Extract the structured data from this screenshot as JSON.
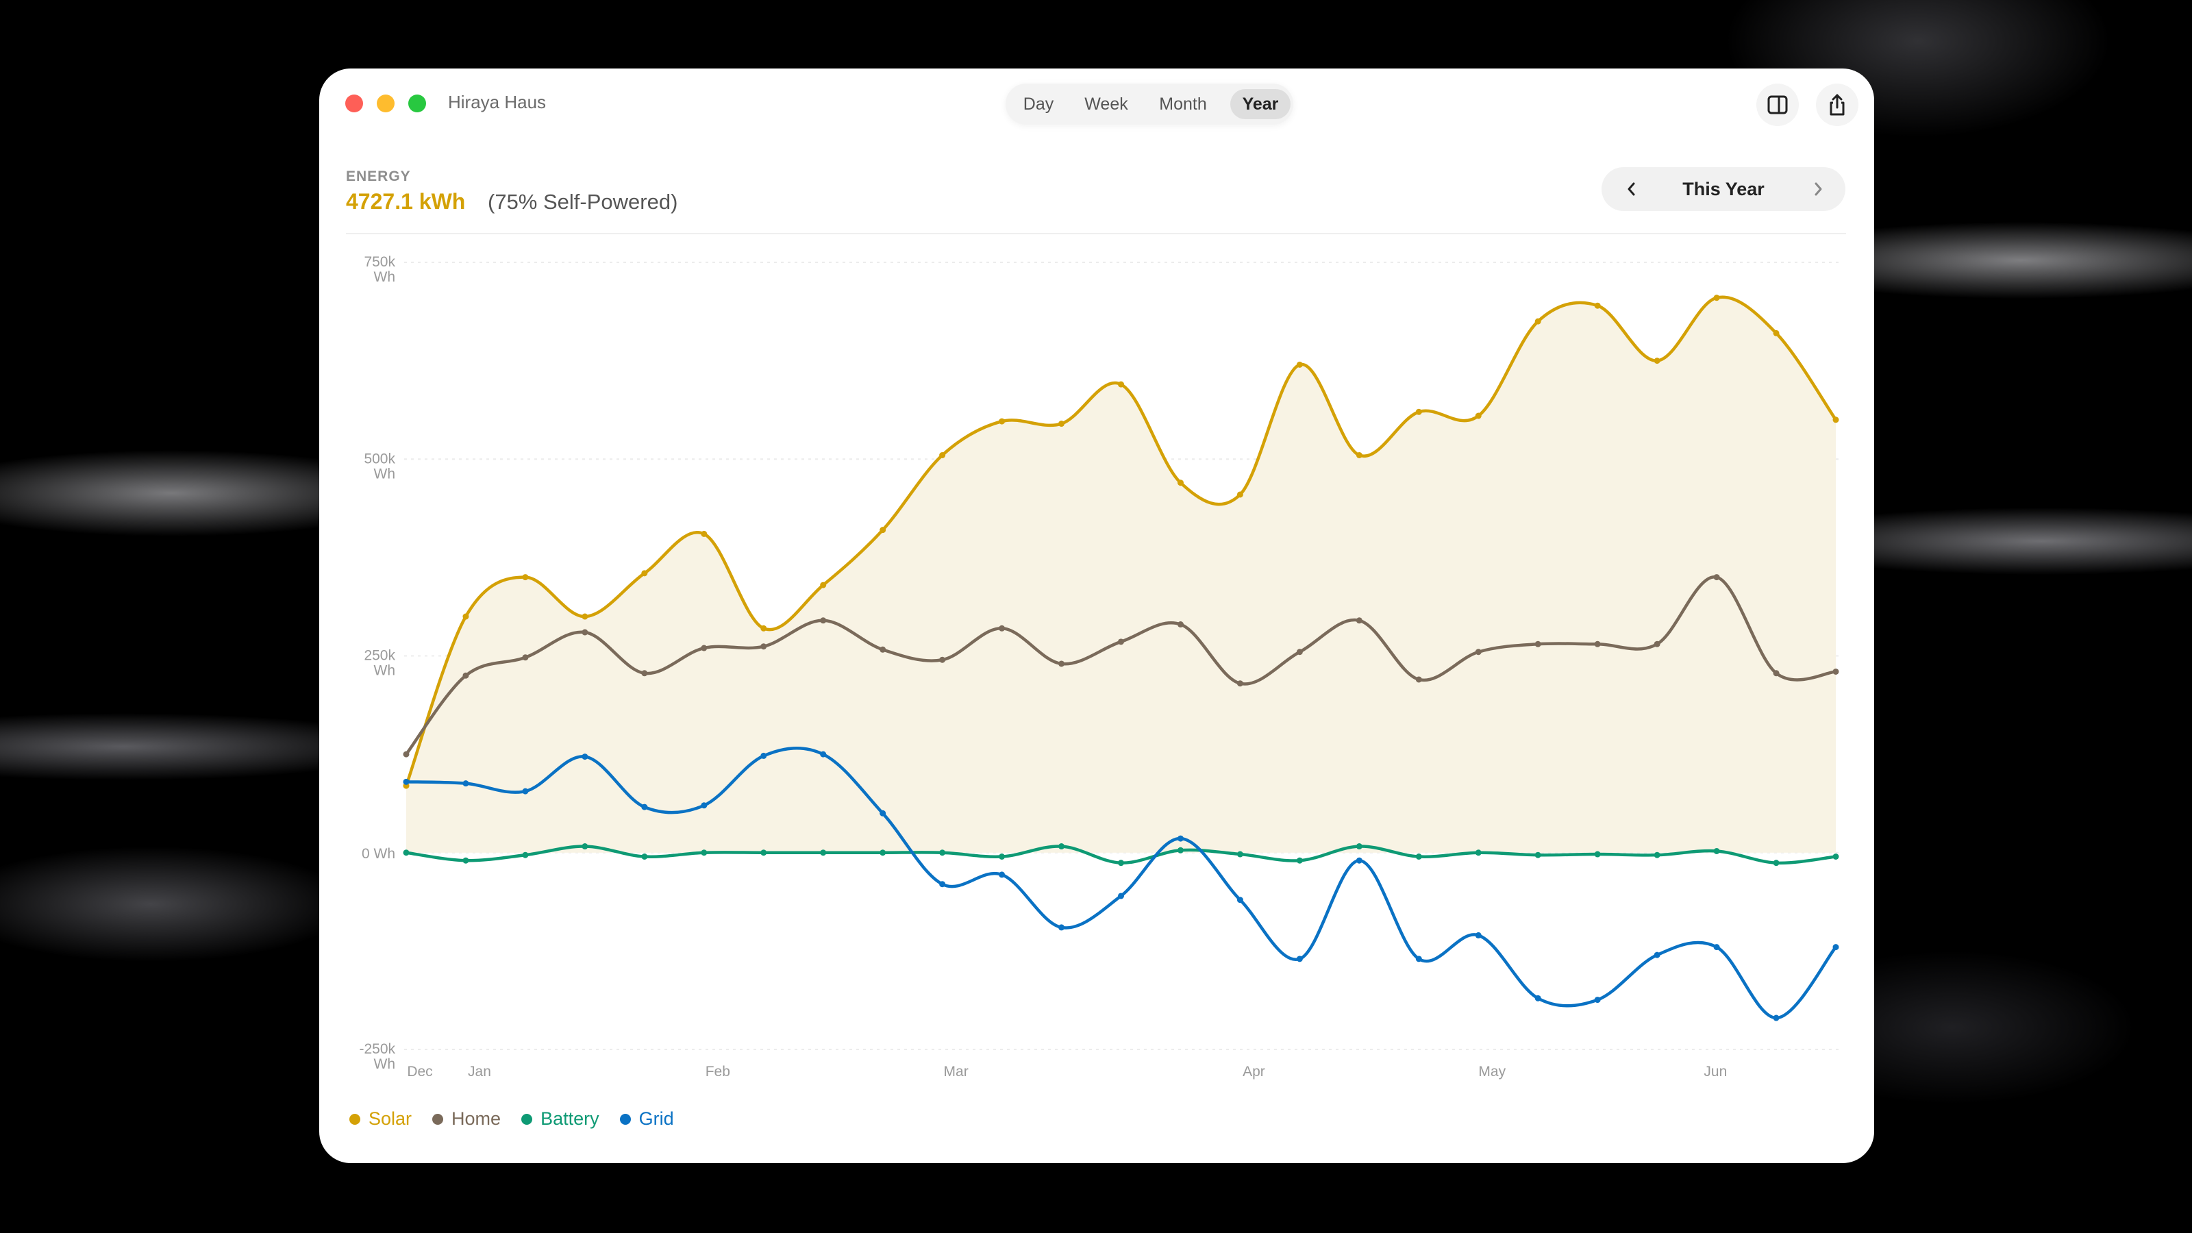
{
  "window": {
    "app_title": "Hiraya Haus",
    "tabs": [
      "Day",
      "Week",
      "Month",
      "Year"
    ],
    "active_tab": "Year",
    "icons": [
      "sidebar-icon",
      "share-icon"
    ]
  },
  "summary": {
    "label": "ENERGY",
    "total": "4727.1 kWh",
    "self_powered": "(75% Self-Powered)"
  },
  "period": {
    "label": "This Year",
    "prev_icon": "chevron-left-icon",
    "next_icon": "chevron-right-icon"
  },
  "colors": {
    "solar": "#D4A106",
    "home": "#7A6A5A",
    "battery": "#0E9A74",
    "grid": "#0A72C4",
    "solar_fill": "#F8F3E4"
  },
  "legend": [
    {
      "name": "Solar",
      "color": "#D4A106"
    },
    {
      "name": "Home",
      "color": "#7A6A5A"
    },
    {
      "name": "Battery",
      "color": "#0E9A74"
    },
    {
      "name": "Grid",
      "color": "#0A72C4"
    }
  ],
  "chart_data": {
    "type": "line",
    "y_ticks": [
      {
        "value": 750000,
        "line1": "750k",
        "line2": "Wh"
      },
      {
        "value": 500000,
        "line1": "500k",
        "line2": "Wh"
      },
      {
        "value": 250000,
        "line1": "250k",
        "line2": "Wh"
      },
      {
        "value": 0,
        "line1": "0 Wh",
        "line2": ""
      },
      {
        "value": -250000,
        "line1": "-250k",
        "line2": "Wh"
      }
    ],
    "ylim": [
      -250000,
      750000
    ],
    "x_ticks": [
      {
        "label": "Dec",
        "week": 0
      },
      {
        "label": "Jan",
        "week": 1
      },
      {
        "label": "Feb",
        "week": 5
      },
      {
        "label": "Mar",
        "week": 9
      },
      {
        "label": "Apr",
        "week": 14
      },
      {
        "label": "May",
        "week": 18
      },
      {
        "label": "Jun",
        "week": 21.75
      }
    ],
    "x_count": 25,
    "grid": true,
    "series": [
      {
        "name": "Solar",
        "color": "#D4A106",
        "fill": true,
        "values": [
          85000,
          300000,
          350000,
          300000,
          355000,
          405000,
          285000,
          340000,
          410000,
          505000,
          548000,
          545000,
          595000,
          470000,
          455000,
          620000,
          505000,
          560000,
          555000,
          675000,
          695000,
          625000,
          705000,
          660000,
          550000
        ]
      },
      {
        "name": "Home",
        "color": "#7A6A5A",
        "values": [
          125000,
          225000,
          248000,
          280000,
          228000,
          260000,
          262000,
          295000,
          258000,
          245000,
          285000,
          240000,
          268000,
          290000,
          215000,
          255000,
          295000,
          220000,
          255000,
          265000,
          265000,
          265000,
          350000,
          228000,
          230000
        ]
      },
      {
        "name": "Battery",
        "color": "#0E9A74",
        "values": [
          0,
          -10000,
          -3000,
          8000,
          -5000,
          0,
          0,
          0,
          0,
          0,
          -5000,
          8000,
          -13000,
          3000,
          -2000,
          -10000,
          8000,
          -5000,
          0,
          -3000,
          -2000,
          -3000,
          2000,
          -13000,
          -5000
        ]
      },
      {
        "name": "Grid",
        "color": "#0A72C4",
        "values": [
          90000,
          88000,
          78000,
          122000,
          58000,
          60000,
          123000,
          125000,
          50000,
          -40000,
          -28000,
          -95000,
          -55000,
          18000,
          -60000,
          -135000,
          -10000,
          -135000,
          -105000,
          -185000,
          -187000,
          -130000,
          -120000,
          -210000,
          -120000
        ]
      }
    ]
  }
}
